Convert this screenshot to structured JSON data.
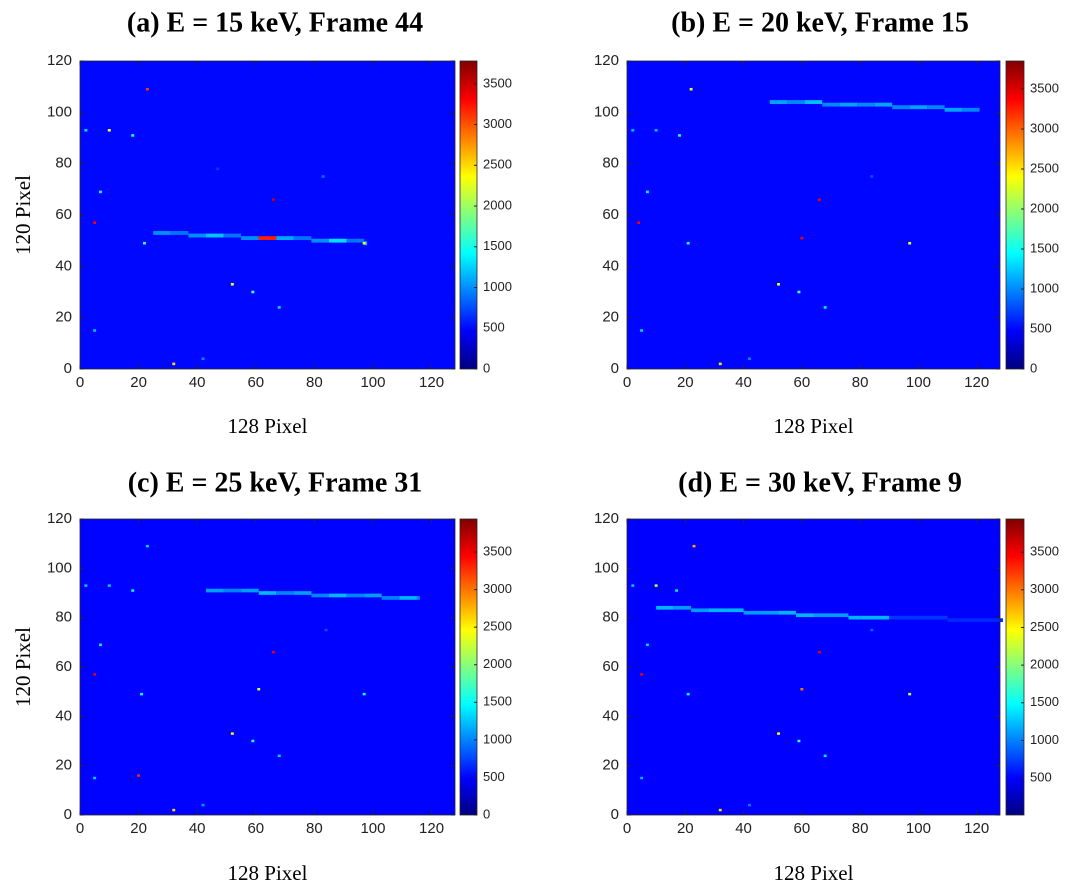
{
  "chart_data": [
    {
      "type": "heatmap",
      "title": "(a) E = 15 keV, Frame 44",
      "xlabel": "128 Pixel",
      "ylabel": "120 Pixel",
      "colormap": "jet",
      "xlim": [
        0,
        128
      ],
      "ylim": [
        120,
        0
      ],
      "xticks": [
        0,
        20,
        40,
        60,
        80,
        100,
        120
      ],
      "yticks": [
        0,
        20,
        40,
        60,
        80,
        100,
        120
      ],
      "clim": [
        0,
        3780
      ],
      "cticks": [
        0,
        500,
        1000,
        1500,
        2000,
        2500,
        3000,
        3500
      ],
      "background": 500,
      "pixels": {
        "x": [
          32,
          42,
          5,
          68,
          59,
          52,
          22,
          97,
          5,
          66,
          7,
          83,
          18,
          10,
          2,
          23,
          47
        ],
        "y": [
          2,
          4,
          15,
          24,
          30,
          33,
          49,
          49,
          57,
          66,
          69,
          75,
          91,
          93,
          93,
          109,
          78
        ],
        "values": [
          2500,
          1000,
          1200,
          1300,
          1700,
          2300,
          1600,
          2300,
          3300,
          3500,
          1400,
          900,
          1500,
          2300,
          1300,
          3100,
          700
        ]
      },
      "track": {
        "x": [
          25,
          31,
          37,
          43,
          49,
          55,
          61,
          67,
          73,
          79,
          85,
          91,
          97
        ],
        "y": [
          53,
          53,
          52,
          52,
          52,
          51,
          51,
          51,
          51,
          50,
          50,
          50,
          49
        ],
        "values": [
          1000,
          900,
          1000,
          1200,
          900,
          1000,
          3200,
          1100,
          900,
          1000,
          1300,
          900,
          1100
        ]
      }
    },
    {
      "type": "heatmap",
      "title": "(b) E = 20 keV, Frame 15",
      "xlabel": "128 Pixel",
      "colormap": "jet",
      "xlim": [
        0,
        128
      ],
      "ylim": [
        120,
        0
      ],
      "xticks": [
        0,
        20,
        40,
        60,
        80,
        100,
        120
      ],
      "yticks": [
        0,
        20,
        40,
        60,
        80,
        100,
        120
      ],
      "clim": [
        0,
        3850
      ],
      "cticks": [
        0,
        500,
        1000,
        1500,
        2000,
        2500,
        3000,
        3500
      ],
      "background": 500,
      "pixels": {
        "x": [
          32,
          42,
          5,
          68,
          59,
          52,
          21,
          97,
          60,
          4,
          66,
          7,
          84,
          18,
          10,
          2,
          22
        ],
        "y": [
          2,
          4,
          15,
          24,
          30,
          33,
          49,
          49,
          51,
          57,
          66,
          69,
          75,
          91,
          93,
          93,
          109
        ],
        "values": [
          2500,
          1000,
          1300,
          1400,
          1700,
          2300,
          1500,
          2300,
          3400,
          3400,
          3400,
          1400,
          800,
          1500,
          1200,
          1200,
          2300
        ]
      },
      "track": {
        "x": [
          49,
          55,
          61,
          67,
          73,
          79,
          85,
          91,
          97,
          103,
          109,
          115,
          120
        ],
        "y": [
          104,
          104,
          104,
          103,
          103,
          103,
          103,
          102,
          102,
          102,
          101,
          101,
          101
        ],
        "values": [
          1100,
          1000,
          1200,
          1000,
          1100,
          1000,
          1100,
          1000,
          1100,
          1000,
          1100,
          1000,
          1000
        ]
      }
    },
    {
      "type": "heatmap",
      "title": "(c) E = 25 keV, Frame 31",
      "xlabel": "128 Pixel",
      "ylabel": "120 Pixel",
      "colormap": "jet",
      "xlim": [
        0,
        128
      ],
      "ylim": [
        120,
        0
      ],
      "xticks": [
        0,
        20,
        40,
        60,
        80,
        100,
        120
      ],
      "yticks": [
        0,
        20,
        40,
        60,
        80,
        100,
        120
      ],
      "clim": [
        0,
        3940
      ],
      "cticks": [
        0,
        500,
        1000,
        1500,
        2000,
        2500,
        3000,
        3500
      ],
      "background": 500,
      "pixels": {
        "x": [
          32,
          42,
          5,
          20,
          68,
          59,
          52,
          21,
          97,
          61,
          5,
          66,
          7,
          84,
          18,
          10,
          2,
          23
        ],
        "y": [
          2,
          4,
          15,
          16,
          24,
          30,
          33,
          49,
          49,
          51,
          57,
          66,
          69,
          75,
          91,
          93,
          93,
          109
        ],
        "values": [
          2600,
          1100,
          1300,
          3300,
          1300,
          1600,
          2500,
          1500,
          1500,
          2300,
          3500,
          3500,
          1400,
          800,
          1500,
          1300,
          1300,
          1300
        ]
      },
      "track": {
        "x": [
          43,
          49,
          55,
          61,
          67,
          73,
          79,
          85,
          91,
          97,
          103,
          109,
          115
        ],
        "y": [
          91,
          91,
          91,
          90,
          90,
          90,
          89,
          89,
          89,
          89,
          88,
          88,
          88
        ],
        "values": [
          1100,
          1000,
          1100,
          1200,
          1000,
          1100,
          1000,
          1200,
          1000,
          1100,
          1000,
          1200,
          1000
        ]
      }
    },
    {
      "type": "heatmap",
      "title": "(d) E = 30 keV, Frame 9",
      "xlabel": "128 Pixel",
      "colormap": "jet",
      "xlim": [
        0,
        128
      ],
      "ylim": [
        120,
        0
      ],
      "xticks": [
        0,
        20,
        40,
        60,
        80,
        100,
        120
      ],
      "yticks": [
        0,
        20,
        40,
        60,
        80,
        100,
        120
      ],
      "clim": [
        10,
        3940
      ],
      "cticks": [
        500,
        1000,
        1500,
        2000,
        2500,
        3000,
        3500
      ],
      "background": 500,
      "pixels": {
        "x": [
          32,
          42,
          5,
          68,
          59,
          52,
          21,
          97,
          60,
          5,
          66,
          7,
          84,
          17,
          10,
          2,
          23
        ],
        "y": [
          2,
          4,
          15,
          24,
          30,
          33,
          49,
          49,
          51,
          57,
          66,
          69,
          75,
          91,
          93,
          93,
          109
        ],
        "values": [
          2600,
          1000,
          1200,
          1400,
          1700,
          2500,
          1500,
          2300,
          3000,
          3500,
          3500,
          1300,
          900,
          1400,
          2300,
          1300,
          2800
        ]
      },
      "track": {
        "x": [
          10,
          16,
          22,
          28,
          34,
          40,
          46,
          52,
          58,
          64,
          70,
          76,
          80,
          90,
          100,
          110,
          128
        ],
        "y": [
          84,
          84,
          83,
          83,
          83,
          82,
          82,
          82,
          81,
          81,
          81,
          80,
          80,
          80,
          80,
          79,
          79
        ],
        "values": [
          1200,
          1100,
          1100,
          1200,
          1200,
          1100,
          1100,
          1200,
          1200,
          1100,
          1100,
          1200,
          1200,
          700,
          700,
          650,
          650
        ]
      }
    }
  ]
}
